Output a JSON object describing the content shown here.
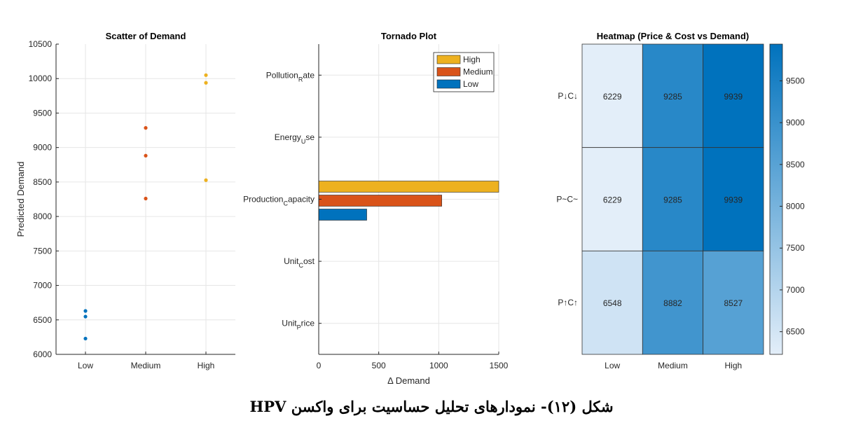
{
  "caption": "شکل (۱۲)- نمودارهای تحلیل حساسیت برای واکسن HPV",
  "chart_data": [
    {
      "type": "scatter",
      "title": "Scatter of Demand",
      "xlabel": "",
      "ylabel": "Predicted Demand",
      "categories": [
        "Low",
        "Medium",
        "High"
      ],
      "ylim": [
        6000,
        10500
      ],
      "yticks": [
        6000,
        6500,
        7000,
        7500,
        8000,
        8500,
        9000,
        9500,
        10000,
        10500
      ],
      "grid": true,
      "series": [
        {
          "name": "Low",
          "category": "Low",
          "color": "#0072BD",
          "values": [
            6229,
            6548,
            6630
          ]
        },
        {
          "name": "Medium",
          "category": "Medium",
          "color": "#D95319",
          "values": [
            8260,
            8882,
            9285
          ]
        },
        {
          "name": "High",
          "category": "High",
          "color": "#EDB120",
          "values": [
            8527,
            9939,
            10050
          ]
        }
      ]
    },
    {
      "type": "bar",
      "orientation": "horizontal",
      "title": "Tornado Plot",
      "xlabel": "Δ Demand",
      "ylabel": "",
      "xlim": [
        0,
        1500
      ],
      "xticks": [
        0,
        500,
        1000,
        1500
      ],
      "categories": [
        "Pollution_Rate",
        "Energy_Use",
        "Production_Capacity",
        "Unit_Cost",
        "Unit_Price"
      ],
      "category_labels": [
        {
          "main": "Pollution",
          "sub": "R",
          "rest": "ate"
        },
        {
          "main": "Energy",
          "sub": "U",
          "rest": "se"
        },
        {
          "main": "Production",
          "sub": "C",
          "rest": "apacity"
        },
        {
          "main": "Unit",
          "sub": "C",
          "rest": "ost"
        },
        {
          "main": "Unit",
          "sub": "P",
          "rest": "rice"
        }
      ],
      "legend_position": "top-right",
      "series": [
        {
          "name": "High",
          "color": "#EDB120",
          "values": [
            0,
            0,
            1520,
            0,
            0
          ]
        },
        {
          "name": "Medium",
          "color": "#D95319",
          "values": [
            0,
            0,
            1025,
            0,
            0
          ]
        },
        {
          "name": "Low",
          "color": "#0072BD",
          "values": [
            0,
            0,
            400,
            0,
            0
          ]
        }
      ]
    },
    {
      "type": "heatmap",
      "title": "Heatmap (Price & Cost vs Demand)",
      "xlabels": [
        "Low",
        "Medium",
        "High"
      ],
      "ylabels": [
        "P↓C↓",
        "P~C~",
        "P↑C↑"
      ],
      "values": [
        [
          6229,
          9285,
          9939
        ],
        [
          6229,
          9285,
          9939
        ],
        [
          6548,
          8882,
          8527
        ]
      ],
      "colorbar": {
        "min": 6229,
        "max": 9939,
        "ticks": [
          6500,
          7000,
          7500,
          8000,
          8500,
          9000,
          9500
        ]
      },
      "color_low": "#E3EEF9",
      "color_high": "#0072BD"
    }
  ]
}
